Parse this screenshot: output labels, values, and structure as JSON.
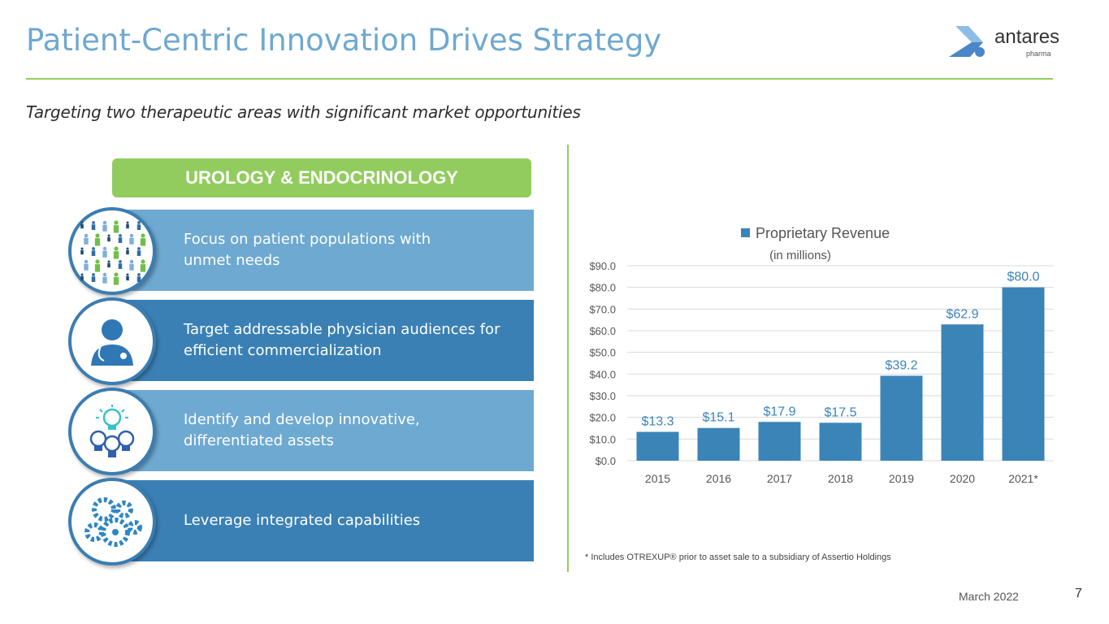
{
  "title": "Patient-Centric Innovation Drives Strategy",
  "logo": {
    "name": "antares",
    "sub": "pharma"
  },
  "subtitle": "Targeting two therapeutic areas with significant market opportunities",
  "section_label": "UROLOGY & ENDOCRINOLOGY",
  "items": [
    {
      "text": "Focus on patient populations with unmet needs",
      "icon": "people-crowd-icon"
    },
    {
      "text": "Target addressable physician audiences for efficient commercialization",
      "icon": "physician-icon"
    },
    {
      "text": "Identify and develop innovative, differentiated assets",
      "icon": "lightbulbs-icon"
    },
    {
      "text": "Leverage integrated capabilities",
      "icon": "gears-icon"
    }
  ],
  "chart_data": {
    "type": "bar",
    "legend": "Proprietary Revenue",
    "legend_position": "top",
    "subtitle": "(in millions)",
    "categories": [
      "2015",
      "2016",
      "2017",
      "2018",
      "2019",
      "2020",
      "2021*"
    ],
    "values": [
      13.3,
      15.1,
      17.9,
      17.5,
      39.2,
      62.9,
      80.0
    ],
    "data_labels": [
      "$13.3",
      "$15.1",
      "$17.9",
      "$17.5",
      "$39.2",
      "$62.9",
      "$80.0"
    ],
    "yticks": [
      "$0.0",
      "$10.0",
      "$20.0",
      "$30.0",
      "$40.0",
      "$50.0",
      "$60.0",
      "$70.0",
      "$80.0",
      "$90.0"
    ],
    "ylim": [
      0,
      90
    ],
    "grid": true,
    "color": "#3b84b8"
  },
  "footnote": "* Includes OTREXUP® prior to asset sale to a subsidiary of Assertio Holdings",
  "date": "March 2022",
  "page_number": "7"
}
